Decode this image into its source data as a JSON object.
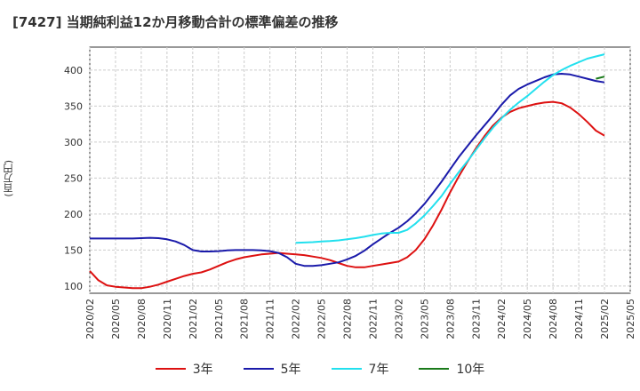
{
  "title": "[7427]  当期純利益12か月移動合計の標準偏差の推移",
  "ylabel": "(百万円)",
  "chart_data": {
    "type": "line",
    "title": "[7427]  当期純利益12か月移動合計の標準偏差の推移",
    "xlabel": "",
    "ylabel": "(百万円)",
    "x_ticks": [
      "2020/02",
      "2020/05",
      "2020/08",
      "2020/11",
      "2021/02",
      "2021/05",
      "2021/08",
      "2021/11",
      "2022/02",
      "2022/05",
      "2022/08",
      "2022/11",
      "2023/02",
      "2023/05",
      "2023/08",
      "2023/11",
      "2024/02",
      "2024/05",
      "2024/08",
      "2024/11",
      "2025/02",
      "2025/05"
    ],
    "y_ticks": [
      100,
      150,
      200,
      250,
      300,
      350,
      400
    ],
    "ylim": [
      90,
      432
    ],
    "xlim": [
      "2020/02",
      "2025/05"
    ],
    "grid": true,
    "legend_position": "bottom",
    "series": [
      {
        "name": "3年",
        "color": "#dd1111",
        "points": [
          [
            "2020/02",
            121
          ],
          [
            "2020/03",
            108
          ],
          [
            "2020/04",
            101
          ],
          [
            "2020/05",
            99
          ],
          [
            "2020/06",
            98
          ],
          [
            "2020/07",
            97
          ],
          [
            "2020/08",
            97
          ],
          [
            "2020/09",
            99
          ],
          [
            "2020/10",
            102
          ],
          [
            "2020/11",
            106
          ],
          [
            "2020/12",
            110
          ],
          [
            "2021/01",
            114
          ],
          [
            "2021/02",
            117
          ],
          [
            "2021/03",
            119
          ],
          [
            "2021/04",
            123
          ],
          [
            "2021/05",
            128
          ],
          [
            "2021/06",
            133
          ],
          [
            "2021/07",
            137
          ],
          [
            "2021/08",
            140
          ],
          [
            "2021/09",
            142
          ],
          [
            "2021/10",
            144
          ],
          [
            "2021/11",
            145
          ],
          [
            "2021/12",
            146
          ],
          [
            "2022/01",
            145
          ],
          [
            "2022/02",
            144
          ],
          [
            "2022/03",
            143
          ],
          [
            "2022/04",
            141
          ],
          [
            "2022/05",
            139
          ],
          [
            "2022/06",
            136
          ],
          [
            "2022/07",
            132
          ],
          [
            "2022/08",
            128
          ],
          [
            "2022/09",
            126
          ],
          [
            "2022/10",
            126
          ],
          [
            "2022/11",
            128
          ],
          [
            "2022/12",
            130
          ],
          [
            "2023/01",
            132
          ],
          [
            "2023/02",
            134
          ],
          [
            "2023/03",
            140
          ],
          [
            "2023/04",
            150
          ],
          [
            "2023/05",
            165
          ],
          [
            "2023/06",
            184
          ],
          [
            "2023/07",
            206
          ],
          [
            "2023/08",
            230
          ],
          [
            "2023/09",
            252
          ],
          [
            "2023/10",
            272
          ],
          [
            "2023/11",
            291
          ],
          [
            "2023/12",
            308
          ],
          [
            "2024/01",
            323
          ],
          [
            "2024/02",
            334
          ],
          [
            "2024/03",
            342
          ],
          [
            "2024/04",
            347
          ],
          [
            "2024/05",
            350
          ],
          [
            "2024/06",
            353
          ],
          [
            "2024/07",
            355
          ],
          [
            "2024/08",
            356
          ],
          [
            "2024/09",
            354
          ],
          [
            "2024/10",
            348
          ],
          [
            "2024/11",
            339
          ],
          [
            "2024/12",
            328
          ],
          [
            "2025/01",
            316
          ],
          [
            "2025/02",
            309
          ]
        ]
      },
      {
        "name": "5年",
        "color": "#1a1aaa",
        "points": [
          [
            "2020/02",
            166
          ],
          [
            "2020/03",
            166
          ],
          [
            "2020/04",
            166
          ],
          [
            "2020/05",
            166
          ],
          [
            "2020/06",
            166
          ],
          [
            "2020/07",
            166
          ],
          [
            "2020/08",
            166.5
          ],
          [
            "2020/09",
            167
          ],
          [
            "2020/10",
            166.5
          ],
          [
            "2020/11",
            165
          ],
          [
            "2020/12",
            162
          ],
          [
            "2021/01",
            157
          ],
          [
            "2021/02",
            150
          ],
          [
            "2021/03",
            148
          ],
          [
            "2021/04",
            148
          ],
          [
            "2021/05",
            148.5
          ],
          [
            "2021/06",
            149.5
          ],
          [
            "2021/07",
            150
          ],
          [
            "2021/08",
            150
          ],
          [
            "2021/09",
            150
          ],
          [
            "2021/10",
            149.5
          ],
          [
            "2021/11",
            148.5
          ],
          [
            "2021/12",
            146
          ],
          [
            "2022/01",
            140
          ],
          [
            "2022/02",
            131
          ],
          [
            "2022/03",
            128
          ],
          [
            "2022/04",
            128
          ],
          [
            "2022/05",
            129
          ],
          [
            "2022/06",
            131
          ],
          [
            "2022/07",
            133
          ],
          [
            "2022/08",
            137
          ],
          [
            "2022/09",
            142
          ],
          [
            "2022/10",
            149
          ],
          [
            "2022/11",
            158
          ],
          [
            "2022/12",
            166
          ],
          [
            "2023/01",
            174
          ],
          [
            "2023/02",
            181
          ],
          [
            "2023/03",
            190
          ],
          [
            "2023/04",
            201
          ],
          [
            "2023/05",
            214
          ],
          [
            "2023/06",
            229
          ],
          [
            "2023/07",
            245
          ],
          [
            "2023/08",
            262
          ],
          [
            "2023/09",
            279
          ],
          [
            "2023/10",
            294
          ],
          [
            "2023/11",
            309
          ],
          [
            "2023/12",
            323
          ],
          [
            "2024/01",
            337
          ],
          [
            "2024/02",
            352
          ],
          [
            "2024/03",
            365
          ],
          [
            "2024/04",
            374
          ],
          [
            "2024/05",
            380
          ],
          [
            "2024/06",
            385
          ],
          [
            "2024/07",
            390
          ],
          [
            "2024/08",
            394
          ],
          [
            "2024/09",
            395
          ],
          [
            "2024/10",
            394
          ],
          [
            "2024/11",
            391
          ],
          [
            "2024/12",
            388
          ],
          [
            "2025/01",
            385
          ],
          [
            "2025/02",
            383
          ]
        ]
      },
      {
        "name": "7年",
        "color": "#22e0ee",
        "points": [
          [
            "2022/02",
            160
          ],
          [
            "2022/03",
            160.5
          ],
          [
            "2022/04",
            161
          ],
          [
            "2022/05",
            162
          ],
          [
            "2022/06",
            162.5
          ],
          [
            "2022/07",
            163.5
          ],
          [
            "2022/08",
            165
          ],
          [
            "2022/09",
            166.5
          ],
          [
            "2022/10",
            168.5
          ],
          [
            "2022/11",
            171
          ],
          [
            "2022/12",
            173
          ],
          [
            "2023/01",
            174
          ],
          [
            "2023/02",
            174
          ],
          [
            "2023/03",
            178
          ],
          [
            "2023/04",
            187
          ],
          [
            "2023/05",
            198
          ],
          [
            "2023/06",
            211
          ],
          [
            "2023/07",
            225
          ],
          [
            "2023/08",
            242
          ],
          [
            "2023/09",
            258
          ],
          [
            "2023/10",
            273
          ],
          [
            "2023/11",
            289
          ],
          [
            "2023/12",
            305
          ],
          [
            "2024/01",
            320
          ],
          [
            "2024/02",
            333
          ],
          [
            "2024/03",
            345
          ],
          [
            "2024/04",
            355
          ],
          [
            "2024/05",
            364
          ],
          [
            "2024/06",
            374
          ],
          [
            "2024/07",
            384
          ],
          [
            "2024/08",
            393
          ],
          [
            "2024/09",
            400
          ],
          [
            "2024/10",
            406
          ],
          [
            "2024/11",
            411
          ],
          [
            "2024/12",
            416
          ],
          [
            "2025/01",
            419
          ],
          [
            "2025/02",
            422
          ]
        ]
      },
      {
        "name": "10年",
        "color": "#1a7a1a",
        "points": [
          [
            "2025/01",
            388
          ],
          [
            "2025/02",
            391
          ]
        ]
      }
    ]
  }
}
